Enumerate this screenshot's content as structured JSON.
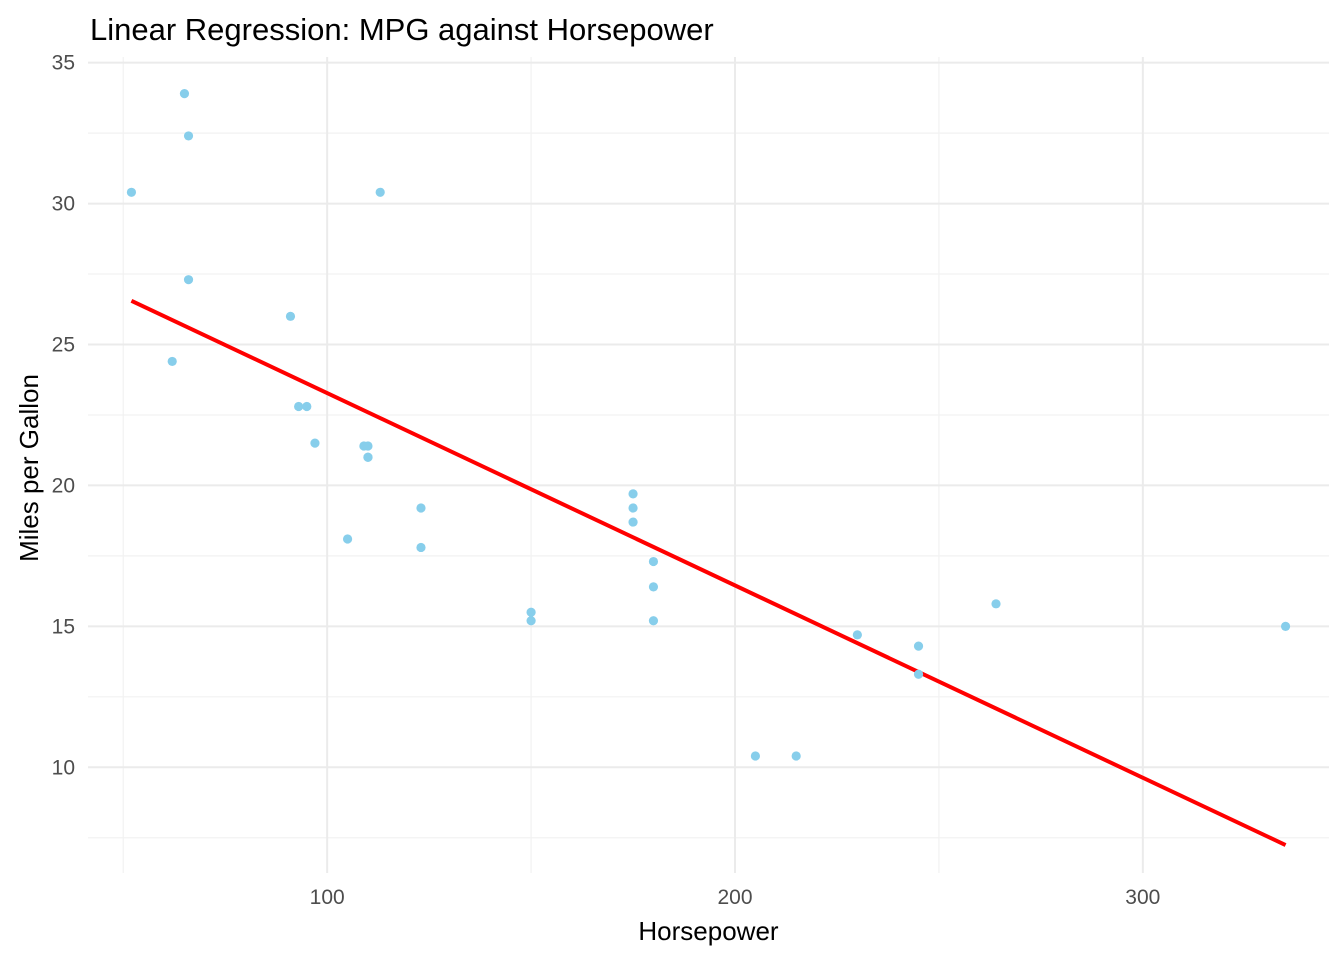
{
  "chart_data": {
    "type": "scatter",
    "title": "Linear Regression: MPG against Horsepower",
    "xlabel": "Horsepower",
    "ylabel": "Miles per Gallon",
    "xlim": [
      41.35,
      345.65
    ],
    "ylim": [
      6.25,
      35.2
    ],
    "x_ticks": [
      100,
      200,
      300
    ],
    "x_minor_ticks": [
      50,
      150,
      250
    ],
    "y_ticks": [
      10,
      15,
      20,
      25,
      30,
      35
    ],
    "y_minor_ticks": [
      7.5,
      12.5,
      17.5,
      22.5,
      27.5,
      32.5
    ],
    "grid": true,
    "legend": "none",
    "point_color": "#87CEEB",
    "line_color": "#FF0000",
    "points": [
      {
        "x": 110,
        "y": 21.0
      },
      {
        "x": 110,
        "y": 21.0
      },
      {
        "x": 93,
        "y": 22.8
      },
      {
        "x": 110,
        "y": 21.4
      },
      {
        "x": 175,
        "y": 18.7
      },
      {
        "x": 105,
        "y": 18.1
      },
      {
        "x": 245,
        "y": 14.3
      },
      {
        "x": 62,
        "y": 24.4
      },
      {
        "x": 95,
        "y": 22.8
      },
      {
        "x": 123,
        "y": 19.2
      },
      {
        "x": 123,
        "y": 17.8
      },
      {
        "x": 180,
        "y": 16.4
      },
      {
        "x": 180,
        "y": 17.3
      },
      {
        "x": 180,
        "y": 15.2
      },
      {
        "x": 205,
        "y": 10.4
      },
      {
        "x": 215,
        "y": 10.4
      },
      {
        "x": 230,
        "y": 14.7
      },
      {
        "x": 66,
        "y": 32.4
      },
      {
        "x": 52,
        "y": 30.4
      },
      {
        "x": 65,
        "y": 33.9
      },
      {
        "x": 97,
        "y": 21.5
      },
      {
        "x": 150,
        "y": 15.5
      },
      {
        "x": 150,
        "y": 15.2
      },
      {
        "x": 245,
        "y": 13.3
      },
      {
        "x": 175,
        "y": 19.2
      },
      {
        "x": 66,
        "y": 27.3
      },
      {
        "x": 91,
        "y": 26.0
      },
      {
        "x": 113,
        "y": 30.4
      },
      {
        "x": 264,
        "y": 15.8
      },
      {
        "x": 175,
        "y": 19.7
      },
      {
        "x": 335,
        "y": 15.0
      },
      {
        "x": 109,
        "y": 21.4
      }
    ],
    "regression_line": {
      "intercept": 30.099,
      "slope": -0.06823,
      "x_range": [
        52,
        335
      ]
    }
  }
}
